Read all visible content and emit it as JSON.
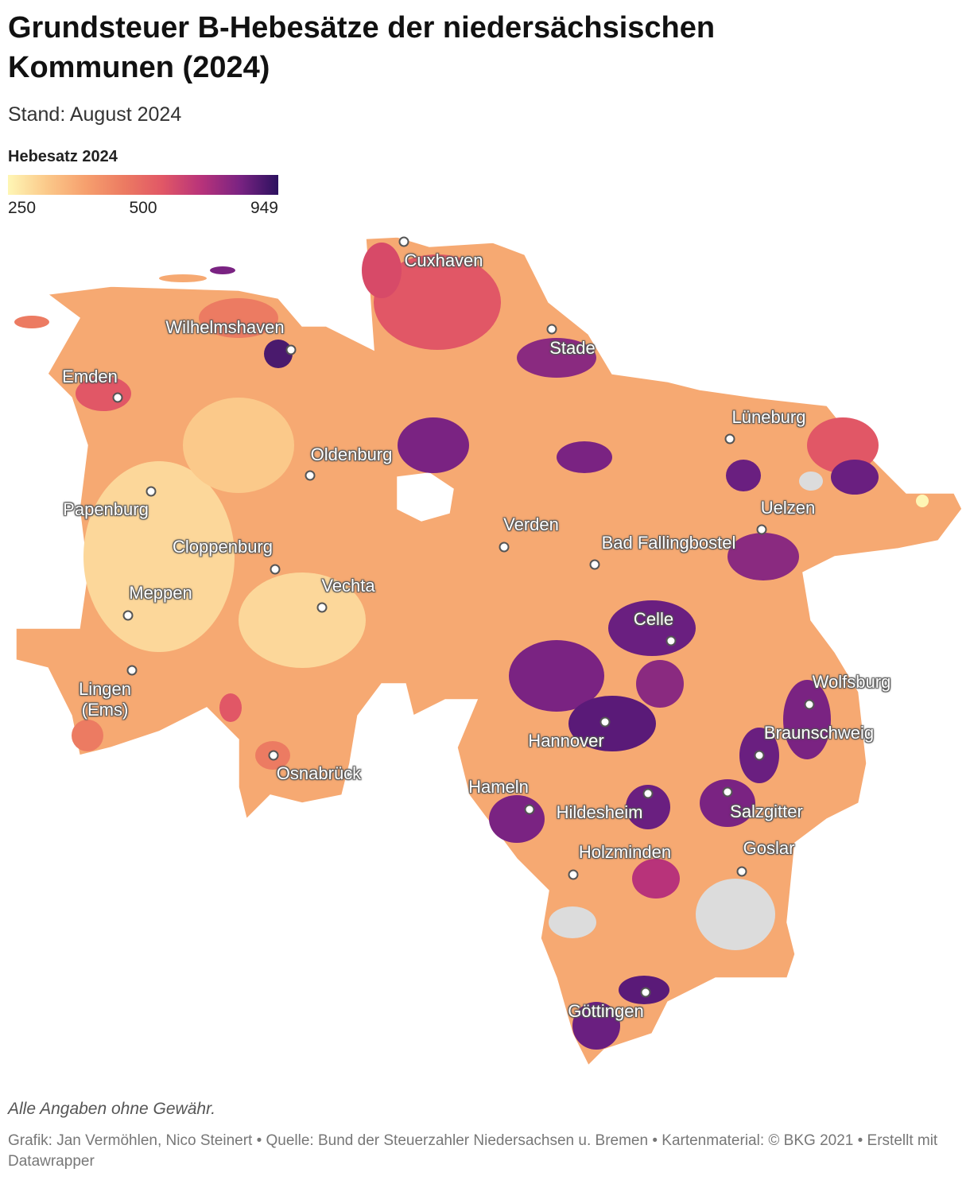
{
  "title": "Grundsteuer B-Hebesätze der niedersächsischen Kommunen (2024)",
  "subtitle": "Stand: August 2024",
  "legend": {
    "title": "Hebesatz 2024",
    "ticks": [
      250,
      500,
      949
    ],
    "colors": [
      "#fef6b5",
      "#fbc98a",
      "#f6a06e",
      "#ec7b62",
      "#e15766",
      "#b8337a",
      "#7a2382",
      "#2c115f"
    ]
  },
  "cities": [
    "Cuxhaven",
    "Wilhelmshaven",
    "Stade",
    "Emden",
    "Lüneburg",
    "Oldenburg",
    "Papenburg",
    "Uelzen",
    "Verden",
    "Bad Fallingbostel",
    "Cloppenburg",
    "Vechta",
    "Meppen",
    "Celle",
    "Lingen (Ems)",
    "Wolfsburg",
    "Hannover",
    "Braunschweig",
    "Osnabrück",
    "Hameln",
    "Hildesheim",
    "Salzgitter",
    "Holzminden",
    "Goslar",
    "Göttingen"
  ],
  "note": "Alle Angaben ohne Gewähr.",
  "source": "Grafik: Jan Vermöhlen, Nico Steinert • Quelle: Bund der Steuerzahler Niedersachsen u. Bremen • Kartenmaterial: © BKG 2021  • Erstellt mit Datawrapper"
}
